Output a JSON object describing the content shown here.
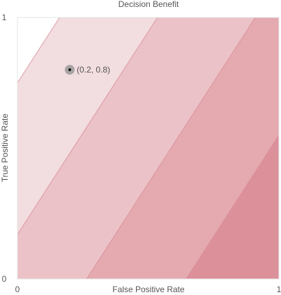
{
  "chart_data": {
    "type": "contour",
    "title": "Decision Benefit",
    "xlabel": "False Positive Rate",
    "ylabel": "True Positive Rate",
    "xlim": [
      0,
      1
    ],
    "ylim": [
      0,
      1
    ],
    "x_ticks": [
      "0",
      "1"
    ],
    "y_ticks": [
      "0",
      "1"
    ],
    "grid": false,
    "bands": [
      {
        "level": 0,
        "color": "#ffffff",
        "y_intercepts": [
          0.75,
          1.25
        ]
      },
      {
        "level": 1,
        "color": "#f2dde0",
        "y_intercepts": [
          0.17,
          0.75
        ]
      },
      {
        "level": 2,
        "color": "#ebc2c7",
        "y_intercepts": [
          -0.41,
          0.17
        ]
      },
      {
        "level": 3,
        "color": "#e4aab0",
        "y_intercepts": [
          -1.0,
          -0.41
        ]
      },
      {
        "level": 4,
        "color": "#dc919a",
        "y_intercepts": [
          -1.6,
          -1.0
        ]
      }
    ],
    "boundary_color": "#d98a93",
    "band_slope": 1.55,
    "point": {
      "x": 0.2,
      "y": 0.8,
      "label": "(0.2, 0.8)"
    }
  }
}
